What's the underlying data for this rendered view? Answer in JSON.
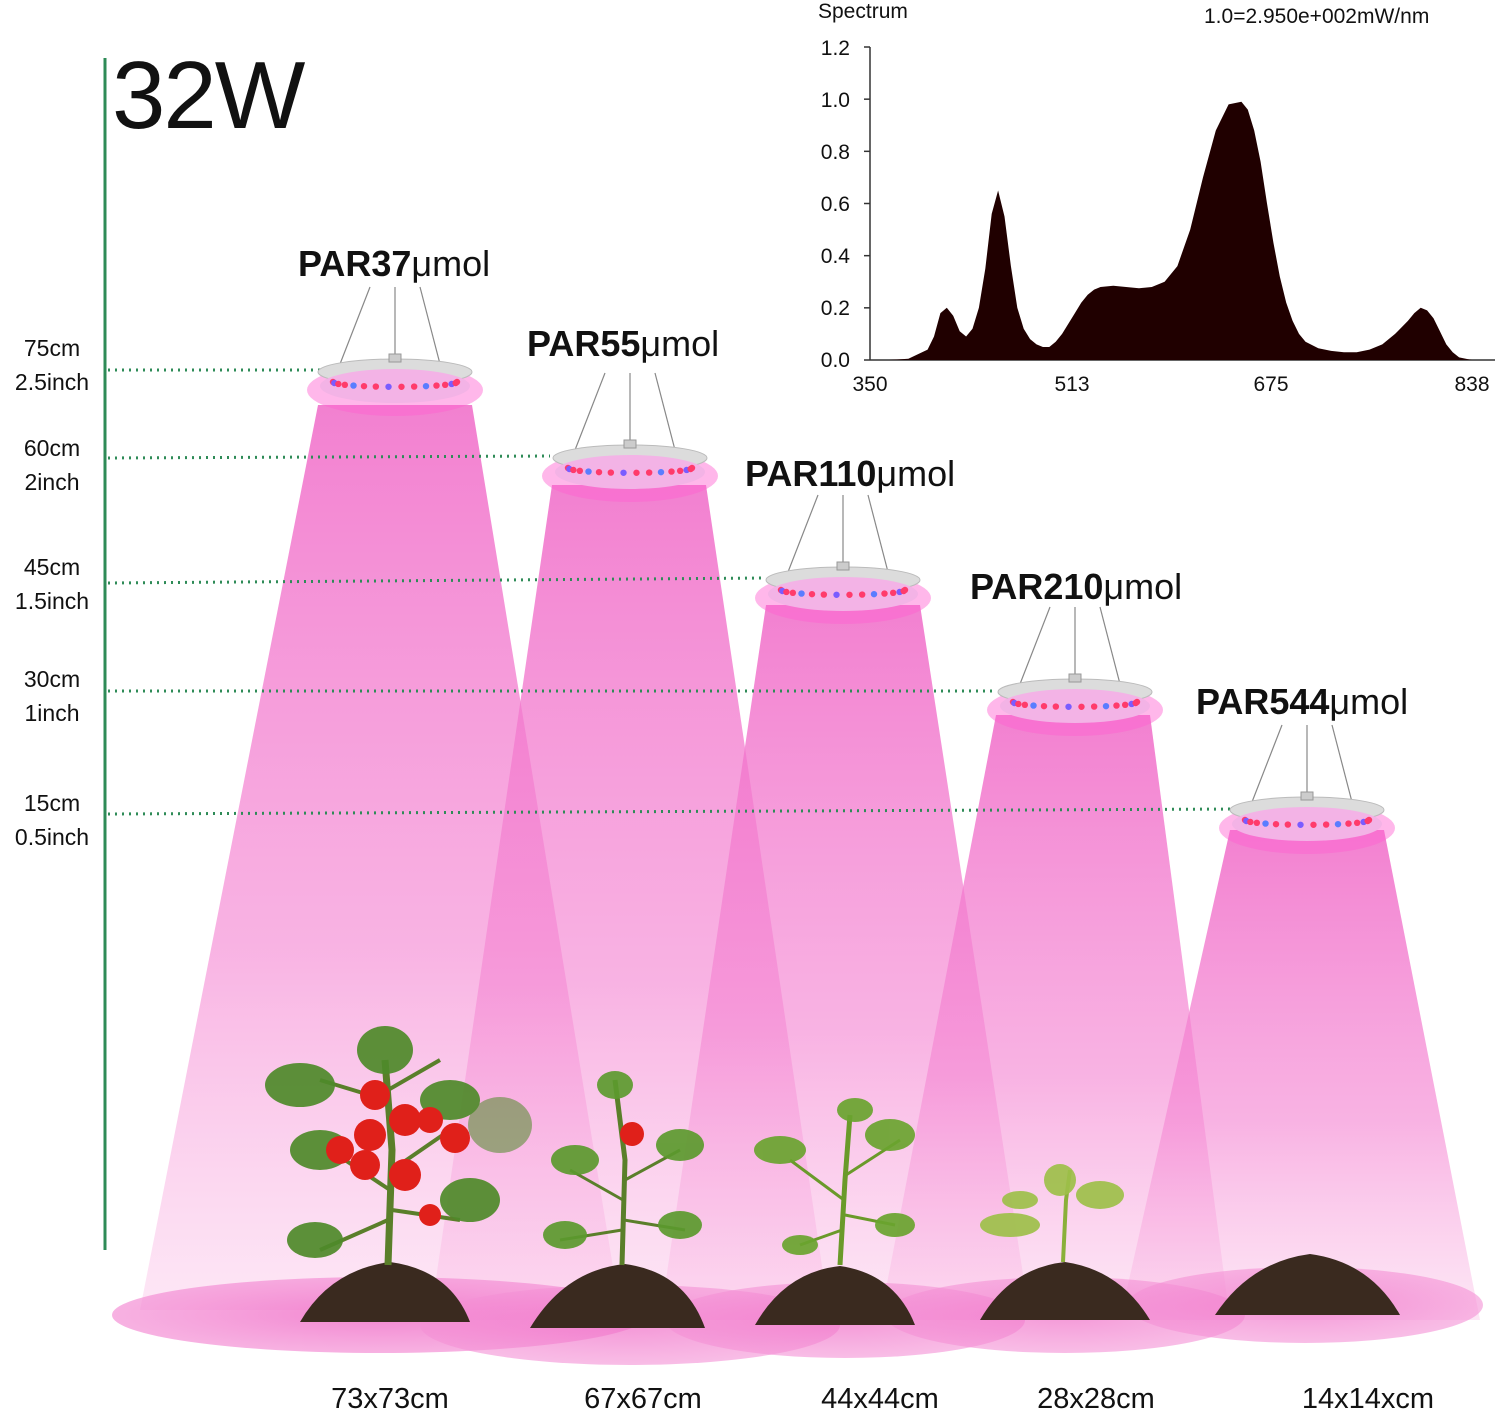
{
  "title": "32W",
  "heights": [
    {
      "cm": "75cm",
      "inch": "2.5inch"
    },
    {
      "cm": "60cm",
      "inch": "2inch"
    },
    {
      "cm": "45cm",
      "inch": "1.5inch"
    },
    {
      "cm": "30cm",
      "inch": "1inch"
    },
    {
      "cm": "15cm",
      "inch": "0.5inch"
    }
  ],
  "lamps": [
    {
      "par_value": "PAR37",
      "par_unit": "μmol",
      "coverage": "73x73cm"
    },
    {
      "par_value": "PAR55",
      "par_unit": "μmol",
      "coverage": "67x67cm"
    },
    {
      "par_value": "PAR110",
      "par_unit": "μmol",
      "coverage": "44x44cm"
    },
    {
      "par_value": "PAR210",
      "par_unit": "μmol",
      "coverage": "28x28cm"
    },
    {
      "par_value": "PAR544",
      "par_unit": "μmol",
      "coverage": "14x14xcm"
    }
  ],
  "colors": {
    "beam": "#f77fd0",
    "guide": "#2e8b57",
    "lamp_body": "#d9d9d9",
    "soil": "#3a2a1f",
    "leaf": "#5a8f2a",
    "tomato": "#e0201a"
  },
  "chart_data": {
    "type": "area",
    "title": "Spectrum",
    "unit_note": "1.0=2.950e+002mW/nm",
    "xlabel": "",
    "ylabel": "",
    "xlim": [
      350,
      838
    ],
    "ylim": [
      0.0,
      1.2
    ],
    "x_ticks": [
      "350",
      "513",
      "675",
      "838"
    ],
    "y_ticks": [
      "1.2",
      "1.0",
      "0.8",
      "0.6",
      "0.4",
      "0.2",
      "0.0"
    ],
    "grid": false,
    "series": [
      {
        "x": [
          350,
          365,
          380,
          395,
          400,
          405,
          410,
          415,
          420,
          425,
          430,
          435,
          440,
          445,
          450,
          455,
          460,
          465,
          470,
          475,
          480,
          485,
          490,
          495,
          500,
          505,
          510,
          515,
          520,
          525,
          530,
          540,
          550,
          560,
          570,
          580,
          590,
          600,
          610,
          620,
          630,
          640,
          645,
          650,
          655,
          660,
          665,
          670,
          675,
          680,
          685,
          690,
          700,
          710,
          720,
          730,
          740,
          750,
          760,
          770,
          775,
          780,
          785,
          790,
          795,
          800,
          805,
          810,
          820,
          838
        ],
        "y": [
          0.0,
          0.0,
          0.005,
          0.04,
          0.09,
          0.18,
          0.2,
          0.17,
          0.11,
          0.09,
          0.12,
          0.2,
          0.35,
          0.56,
          0.65,
          0.55,
          0.36,
          0.2,
          0.12,
          0.08,
          0.06,
          0.05,
          0.05,
          0.07,
          0.1,
          0.14,
          0.18,
          0.22,
          0.25,
          0.27,
          0.28,
          0.285,
          0.28,
          0.275,
          0.28,
          0.3,
          0.36,
          0.5,
          0.7,
          0.88,
          0.98,
          0.99,
          0.96,
          0.88,
          0.76,
          0.6,
          0.45,
          0.32,
          0.22,
          0.15,
          0.1,
          0.07,
          0.045,
          0.035,
          0.03,
          0.03,
          0.04,
          0.06,
          0.1,
          0.15,
          0.18,
          0.2,
          0.19,
          0.16,
          0.11,
          0.06,
          0.03,
          0.01,
          0.0,
          0.0
        ]
      }
    ]
  }
}
